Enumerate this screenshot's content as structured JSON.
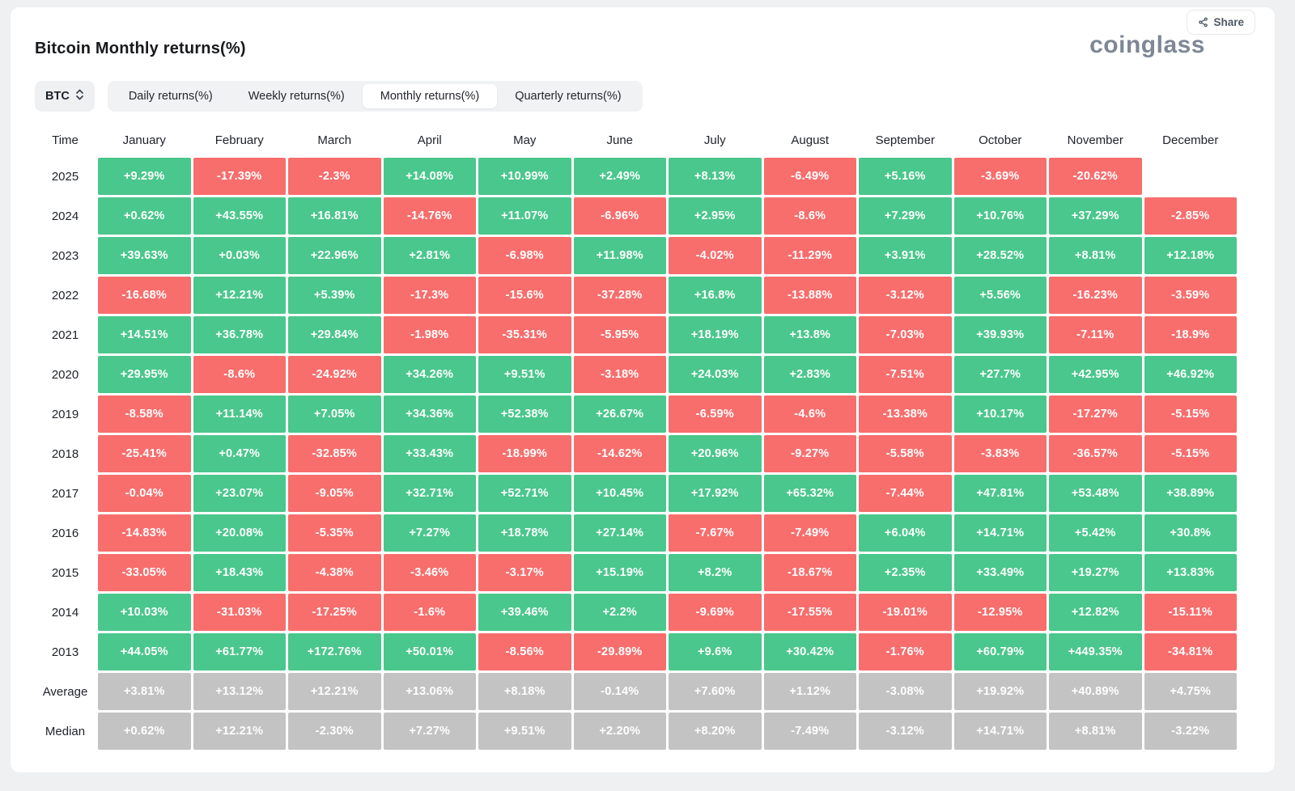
{
  "page": {
    "title": "Bitcoin Monthly returns(%)",
    "brand": "coinglass",
    "share_label": "Share"
  },
  "toolbar": {
    "symbol": "BTC",
    "tabs": [
      "Daily returns(%)",
      "Weekly returns(%)",
      "Monthly returns(%)",
      "Quarterly returns(%)"
    ],
    "active_tab": "Monthly returns(%)"
  },
  "chart_data": {
    "type": "heatmap",
    "title": "Bitcoin Monthly returns(%)",
    "row_header": "Time",
    "columns": [
      "January",
      "February",
      "March",
      "April",
      "May",
      "June",
      "July",
      "August",
      "September",
      "October",
      "November",
      "December"
    ],
    "colors": {
      "positive": "#4ac78c",
      "negative": "#f76e6d",
      "summary": "#c3c3c4"
    },
    "rows": [
      {
        "label": "2025",
        "type": "year",
        "values": [
          "+9.29%",
          "-17.39%",
          "-2.3%",
          "+14.08%",
          "+10.99%",
          "+2.49%",
          "+8.13%",
          "-6.49%",
          "+5.16%",
          "-3.69%",
          "-20.62%",
          null
        ]
      },
      {
        "label": "2024",
        "type": "year",
        "values": [
          "+0.62%",
          "+43.55%",
          "+16.81%",
          "-14.76%",
          "+11.07%",
          "-6.96%",
          "+2.95%",
          "-8.6%",
          "+7.29%",
          "+10.76%",
          "+37.29%",
          "-2.85%"
        ]
      },
      {
        "label": "2023",
        "type": "year",
        "values": [
          "+39.63%",
          "+0.03%",
          "+22.96%",
          "+2.81%",
          "-6.98%",
          "+11.98%",
          "-4.02%",
          "-11.29%",
          "+3.91%",
          "+28.52%",
          "+8.81%",
          "+12.18%"
        ]
      },
      {
        "label": "2022",
        "type": "year",
        "values": [
          "-16.68%",
          "+12.21%",
          "+5.39%",
          "-17.3%",
          "-15.6%",
          "-37.28%",
          "+16.8%",
          "-13.88%",
          "-3.12%",
          "+5.56%",
          "-16.23%",
          "-3.59%"
        ]
      },
      {
        "label": "2021",
        "type": "year",
        "values": [
          "+14.51%",
          "+36.78%",
          "+29.84%",
          "-1.98%",
          "-35.31%",
          "-5.95%",
          "+18.19%",
          "+13.8%",
          "-7.03%",
          "+39.93%",
          "-7.11%",
          "-18.9%"
        ]
      },
      {
        "label": "2020",
        "type": "year",
        "values": [
          "+29.95%",
          "-8.6%",
          "-24.92%",
          "+34.26%",
          "+9.51%",
          "-3.18%",
          "+24.03%",
          "+2.83%",
          "-7.51%",
          "+27.7%",
          "+42.95%",
          "+46.92%"
        ]
      },
      {
        "label": "2019",
        "type": "year",
        "values": [
          "-8.58%",
          "+11.14%",
          "+7.05%",
          "+34.36%",
          "+52.38%",
          "+26.67%",
          "-6.59%",
          "-4.6%",
          "-13.38%",
          "+10.17%",
          "-17.27%",
          "-5.15%"
        ]
      },
      {
        "label": "2018",
        "type": "year",
        "values": [
          "-25.41%",
          "+0.47%",
          "-32.85%",
          "+33.43%",
          "-18.99%",
          "-14.62%",
          "+20.96%",
          "-9.27%",
          "-5.58%",
          "-3.83%",
          "-36.57%",
          "-5.15%"
        ]
      },
      {
        "label": "2017",
        "type": "year",
        "values": [
          "-0.04%",
          "+23.07%",
          "-9.05%",
          "+32.71%",
          "+52.71%",
          "+10.45%",
          "+17.92%",
          "+65.32%",
          "-7.44%",
          "+47.81%",
          "+53.48%",
          "+38.89%"
        ]
      },
      {
        "label": "2016",
        "type": "year",
        "values": [
          "-14.83%",
          "+20.08%",
          "-5.35%",
          "+7.27%",
          "+18.78%",
          "+27.14%",
          "-7.67%",
          "-7.49%",
          "+6.04%",
          "+14.71%",
          "+5.42%",
          "+30.8%"
        ]
      },
      {
        "label": "2015",
        "type": "year",
        "values": [
          "-33.05%",
          "+18.43%",
          "-4.38%",
          "-3.46%",
          "-3.17%",
          "+15.19%",
          "+8.2%",
          "-18.67%",
          "+2.35%",
          "+33.49%",
          "+19.27%",
          "+13.83%"
        ]
      },
      {
        "label": "2014",
        "type": "year",
        "values": [
          "+10.03%",
          "-31.03%",
          "-17.25%",
          "-1.6%",
          "+39.46%",
          "+2.2%",
          "-9.69%",
          "-17.55%",
          "-19.01%",
          "-12.95%",
          "+12.82%",
          "-15.11%"
        ]
      },
      {
        "label": "2013",
        "type": "year",
        "values": [
          "+44.05%",
          "+61.77%",
          "+172.76%",
          "+50.01%",
          "-8.56%",
          "-29.89%",
          "+9.6%",
          "+30.42%",
          "-1.76%",
          "+60.79%",
          "+449.35%",
          "-34.81%"
        ]
      },
      {
        "label": "Average",
        "type": "summary",
        "values": [
          "+3.81%",
          "+13.12%",
          "+12.21%",
          "+13.06%",
          "+8.18%",
          "-0.14%",
          "+7.60%",
          "+1.12%",
          "-3.08%",
          "+19.92%",
          "+40.89%",
          "+4.75%"
        ]
      },
      {
        "label": "Median",
        "type": "summary",
        "values": [
          "+0.62%",
          "+12.21%",
          "-2.30%",
          "+7.27%",
          "+9.51%",
          "+2.20%",
          "+8.20%",
          "-7.49%",
          "-3.12%",
          "+14.71%",
          "+8.81%",
          "-3.22%"
        ]
      }
    ]
  }
}
